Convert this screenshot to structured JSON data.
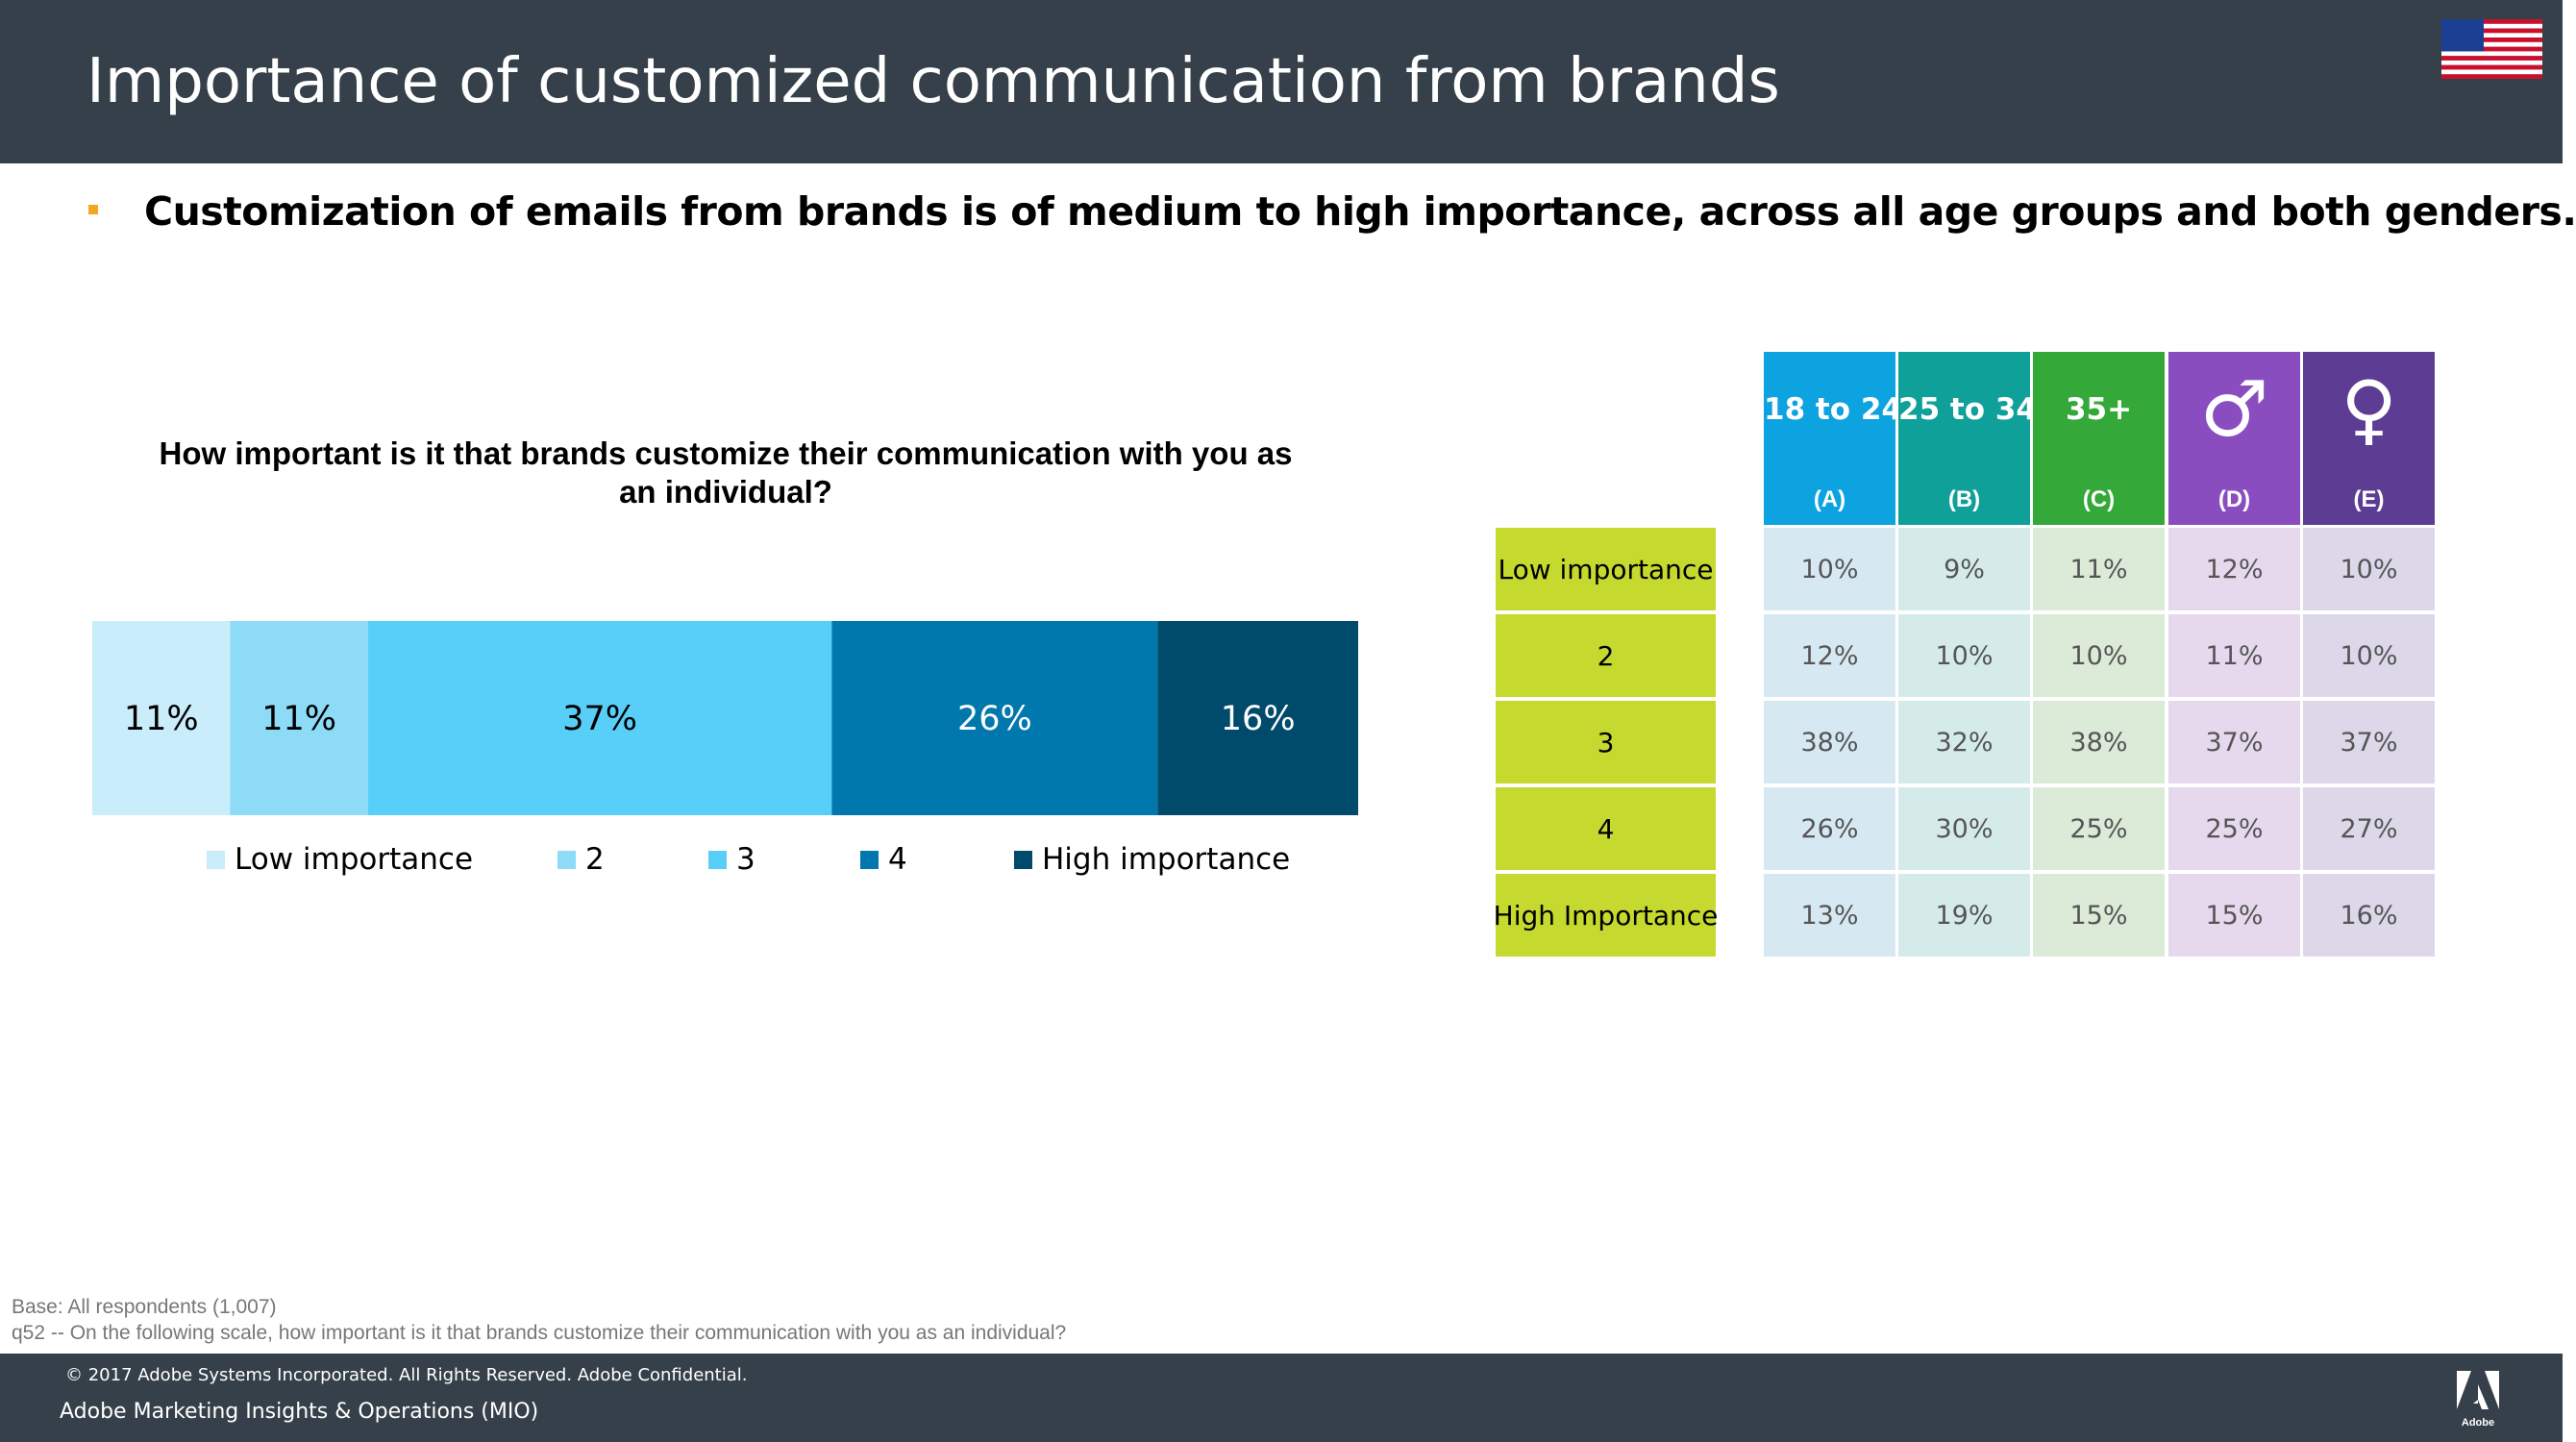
{
  "header": {
    "title": "Importance of customized communication from brands"
  },
  "subtitle": "Customization of emails from brands is of medium to high importance, across all age groups and both genders.",
  "chart_data": [
    {
      "type": "bar",
      "orientation": "horizontal-stacked",
      "title": "How important is it that brands customize their communication with you as an individual?",
      "series": [
        {
          "name": "Low importance",
          "value": 11,
          "label": "11%",
          "color": "#c9edfb",
          "label_color": "#000000"
        },
        {
          "name": "2",
          "value": 11,
          "label": "11%",
          "color": "#8ddbf7",
          "label_color": "#000000"
        },
        {
          "name": "3",
          "value": 37,
          "label": "37%",
          "color": "#58cff8",
          "label_color": "#000000"
        },
        {
          "name": "4",
          "value": 26,
          "label": "26%",
          "color": "#0078ad",
          "label_color": "#ffffff"
        },
        {
          "name": "High importance",
          "value": 16,
          "label": "16%",
          "color": "#004b6b",
          "label_color": "#ffffff"
        }
      ],
      "legend_position": "bottom"
    },
    {
      "type": "table",
      "columns": [
        {
          "label": "18 to 24",
          "letter": "(A)",
          "color": "#0da2e0",
          "cell_color": "#d6e9f3"
        },
        {
          "label": "25 to 34",
          "letter": "(B)",
          "color": "#0fa09a",
          "cell_color": "#d5ebea"
        },
        {
          "label": "35+",
          "letter": "(C)",
          "color": "#34a93a",
          "cell_color": "#dcead8"
        },
        {
          "label": "",
          "icon": "male-icon",
          "symbol": "♂",
          "letter": "(D)",
          "color": "#8a4dc0",
          "cell_color": "#e6d9ee"
        },
        {
          "label": "",
          "icon": "female-icon",
          "symbol": "♀",
          "letter": "(E)",
          "color": "#5d3c93",
          "cell_color": "#dcd8ea"
        }
      ],
      "rows": [
        {
          "label": "Low importance",
          "values": [
            "10%",
            "9%",
            "11%",
            "12%",
            "10%"
          ]
        },
        {
          "label": "2",
          "values": [
            "12%",
            "10%",
            "10%",
            "11%",
            "10%"
          ]
        },
        {
          "label": "3",
          "values": [
            "38%",
            "32%",
            "38%",
            "37%",
            "37%"
          ]
        },
        {
          "label": "4",
          "values": [
            "26%",
            "30%",
            "25%",
            "25%",
            "27%"
          ]
        },
        {
          "label": "High Importance",
          "values": [
            "13%",
            "19%",
            "15%",
            "15%",
            "16%"
          ]
        }
      ]
    }
  ],
  "notes": {
    "base": "Base: All respondents (1,007)",
    "question": "q52 -- On the following scale, how important is it that brands customize their communication with you as an individual?"
  },
  "footer": {
    "copyright": "© 2017 Adobe Systems Incorporated.  All Rights Reserved.  Adobe Confidential.",
    "subtitle": "Adobe Marketing Insights & Operations (MIO)",
    "logo_text": "Adobe"
  },
  "colors": {
    "header_bg": "#36404a",
    "row_label_bg": "#c5d92e",
    "bullet": "#f5a623"
  }
}
